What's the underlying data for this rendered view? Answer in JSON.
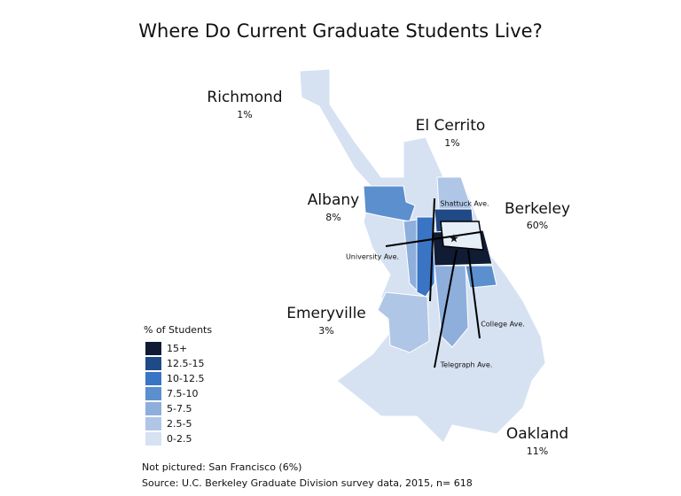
{
  "title": "Where Do Current Graduate Students Live?",
  "regions": [
    {
      "name": "Richmond",
      "share": "1%"
    },
    {
      "name": "El Cerrito",
      "share": "1%"
    },
    {
      "name": "Albany",
      "share": "8%"
    },
    {
      "name": "Berkeley",
      "share": "60%"
    },
    {
      "name": "Emeryville",
      "share": "3%"
    },
    {
      "name": "Oakland",
      "share": "11%"
    }
  ],
  "streets": [
    "Shattuck Ave.",
    "University Ave.",
    "College Ave.",
    "Telegraph Ave."
  ],
  "legend": {
    "title": "% of Students",
    "items": [
      {
        "label": "15+",
        "color": "#0f1c33"
      },
      {
        "label": "12.5-15",
        "color": "#1f4a86"
      },
      {
        "label": "10-12.5",
        "color": "#3a74c4"
      },
      {
        "label": "7.5-10",
        "color": "#5b8fcd"
      },
      {
        "label": "5-7.5",
        "color": "#8eaedc"
      },
      {
        "label": "2.5-5",
        "color": "#b0c6e6"
      },
      {
        "label": "0-2.5",
        "color": "#d6e2f2"
      }
    ]
  },
  "notes": [
    "Not pictured: San Francisco (6%)",
    "Source: U.C. Berkeley Graduate Division survey data, 2015, n= 618"
  ]
}
